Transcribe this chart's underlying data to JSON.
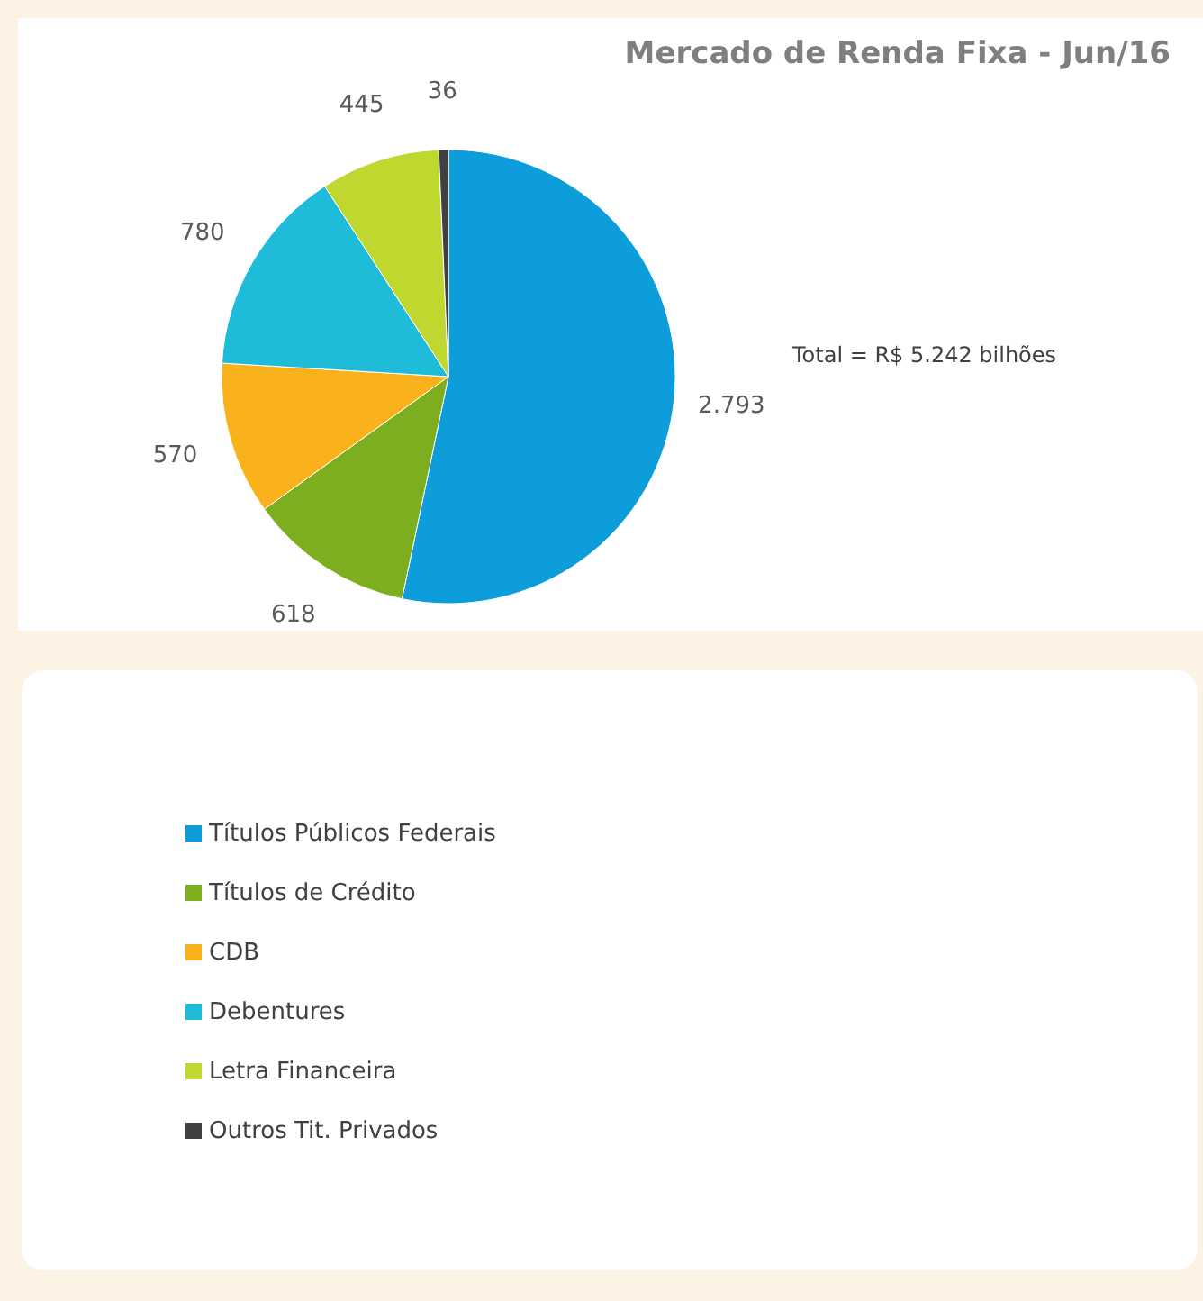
{
  "chart_data": {
    "type": "pie",
    "title": "Mercado de Renda Fixa - Jun/16",
    "categories": [
      "Títulos Públicos Federais",
      "Títulos de Crédito",
      "CDB",
      "Debentures",
      "Letra Financeira",
      "Outros Tit. Privados"
    ],
    "values": [
      2793,
      618,
      570,
      780,
      445,
      36
    ],
    "colors": [
      "#0e9ddb",
      "#7dae1f",
      "#f9b21c",
      "#1ebcd9",
      "#bfd72f",
      "#404040"
    ],
    "value_labels": [
      "2.793",
      "618",
      "570",
      "780",
      "445",
      "36"
    ],
    "annotations": [
      "Total = R$ 5.242 bilhões"
    ],
    "legend": "bottom"
  }
}
